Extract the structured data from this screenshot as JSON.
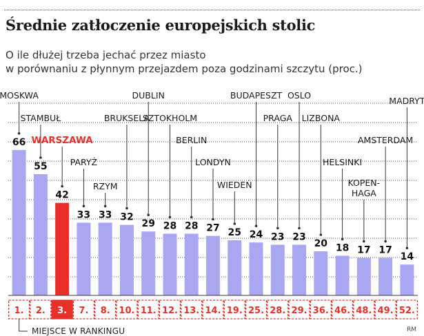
{
  "title": "Średnie zatłoczenie europejskich stolic",
  "subtitle": "O ile dłużej trzeba jechać przez miasto\nw porównaniu z płynnym przejazdem poza godzinami szczytu (proc.)",
  "footnote": "MIEJSCE W RANKINGU",
  "credit": "RM",
  "colors": {
    "bar": "#a9a6f2",
    "highlight_bar": "#e8302a",
    "highlight_text": "#e8302a",
    "rank_box_border": "#e8302a",
    "leader": "#333333",
    "grid": "#555555"
  },
  "chart_data": {
    "type": "bar",
    "title": "Średnie zatłoczenie europejskich stolic",
    "ylabel": "",
    "ylim": [
      0,
      75
    ],
    "grid": true,
    "highlight": "WARSZAWA",
    "categories": [
      "MOSKWA",
      "STAMBUŁ",
      "WARSZAWA",
      "PARYŻ",
      "RZYM",
      "BRUKSELA",
      "DUBLIN",
      "SZTOKHOLM",
      "BERLIN",
      "LONDYN",
      "WIEDEŃ",
      "BUDAPESZT",
      "PRAGA",
      "OSLO",
      "LIZBONA",
      "HELSINKI",
      "KOPEN-\nHAGA",
      "AMSTERDAM",
      "MADRYT"
    ],
    "values": [
      66,
      55,
      42,
      33,
      33,
      32,
      29,
      28,
      28,
      27,
      25,
      24,
      23,
      23,
      20,
      18,
      17,
      17,
      14
    ],
    "ranks": [
      "1.",
      "2.",
      "3.",
      "7.",
      "8.",
      "10.",
      "11.",
      "12.",
      "13.",
      "14.",
      "19.",
      "25.",
      "28.",
      "29.",
      "36.",
      "46.",
      "48.",
      "49.",
      "52."
    ]
  }
}
